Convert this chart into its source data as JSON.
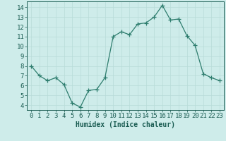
{
  "x": [
    0,
    1,
    2,
    3,
    4,
    5,
    6,
    7,
    8,
    9,
    10,
    11,
    12,
    13,
    14,
    15,
    16,
    17,
    18,
    19,
    20,
    21,
    22,
    23
  ],
  "y": [
    8.0,
    7.0,
    6.5,
    6.8,
    6.1,
    4.2,
    3.8,
    5.5,
    5.6,
    6.8,
    11.0,
    11.5,
    11.2,
    12.3,
    12.4,
    13.0,
    14.2,
    12.7,
    12.8,
    11.1,
    10.1,
    7.2,
    6.8,
    6.5
  ],
  "line_color": "#2e7d6e",
  "marker": "+",
  "marker_size": 4,
  "bg_color": "#ceecea",
  "grid_color": "#b8dbd8",
  "xlabel": "Humidex (Indice chaleur)",
  "xlim": [
    -0.5,
    23.5
  ],
  "ylim": [
    3.5,
    14.6
  ],
  "yticks": [
    4,
    5,
    6,
    7,
    8,
    9,
    10,
    11,
    12,
    13,
    14
  ],
  "xticks": [
    0,
    1,
    2,
    3,
    4,
    5,
    6,
    7,
    8,
    9,
    10,
    11,
    12,
    13,
    14,
    15,
    16,
    17,
    18,
    19,
    20,
    21,
    22,
    23
  ],
  "xlabel_fontsize": 7,
  "tick_fontsize": 6.5,
  "tick_color": "#1a5c52",
  "axis_color": "#1a5c52",
  "line_width": 0.9,
  "marker_edge_width": 0.9
}
